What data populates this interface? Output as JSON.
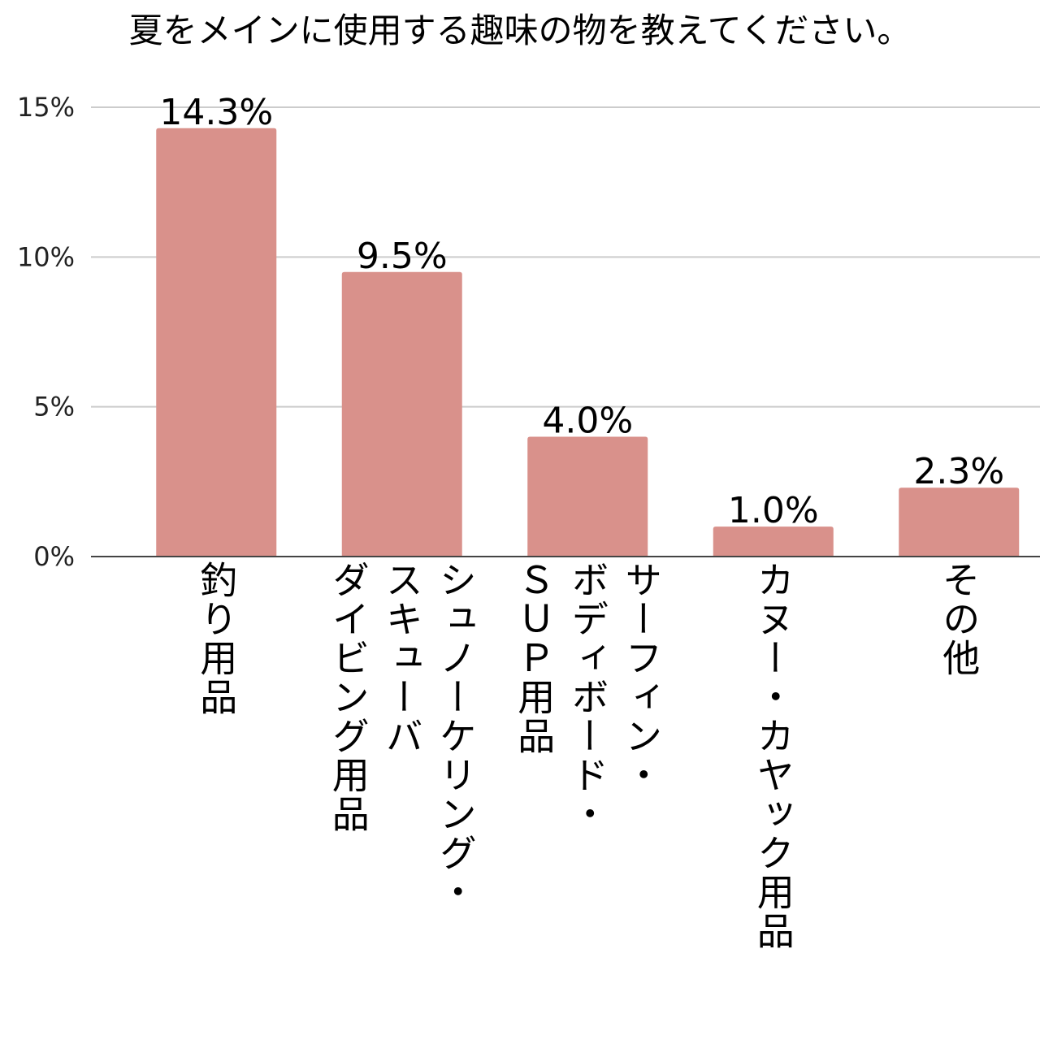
{
  "chart_data": {
    "type": "bar",
    "title": "夏をメインに使用する趣味の物を教えてください。",
    "xlabel": "",
    "ylabel": "",
    "categories": [
      "釣り用品",
      "シュノーケリング・\nスキューバ\nダイビング用品",
      "サーフィン・\nボディボード・\nＳＵＰ用品",
      "カヌー・カヤック用品",
      "その他"
    ],
    "values": [
      14.3,
      9.5,
      4.0,
      1.0,
      2.3
    ],
    "value_labels": [
      "14.3%",
      "9.5%",
      "4.0%",
      "1.0%",
      "2.3%"
    ],
    "ylim": [
      0,
      15
    ],
    "yticks": [
      0,
      5,
      10,
      15
    ],
    "ytick_labels": [
      "0%",
      "5%",
      "10%",
      "15%"
    ],
    "grid": true,
    "legend": "none",
    "bar_color": "#d9918b",
    "grid_color": "#cccccc",
    "axis_color": "#444444"
  }
}
